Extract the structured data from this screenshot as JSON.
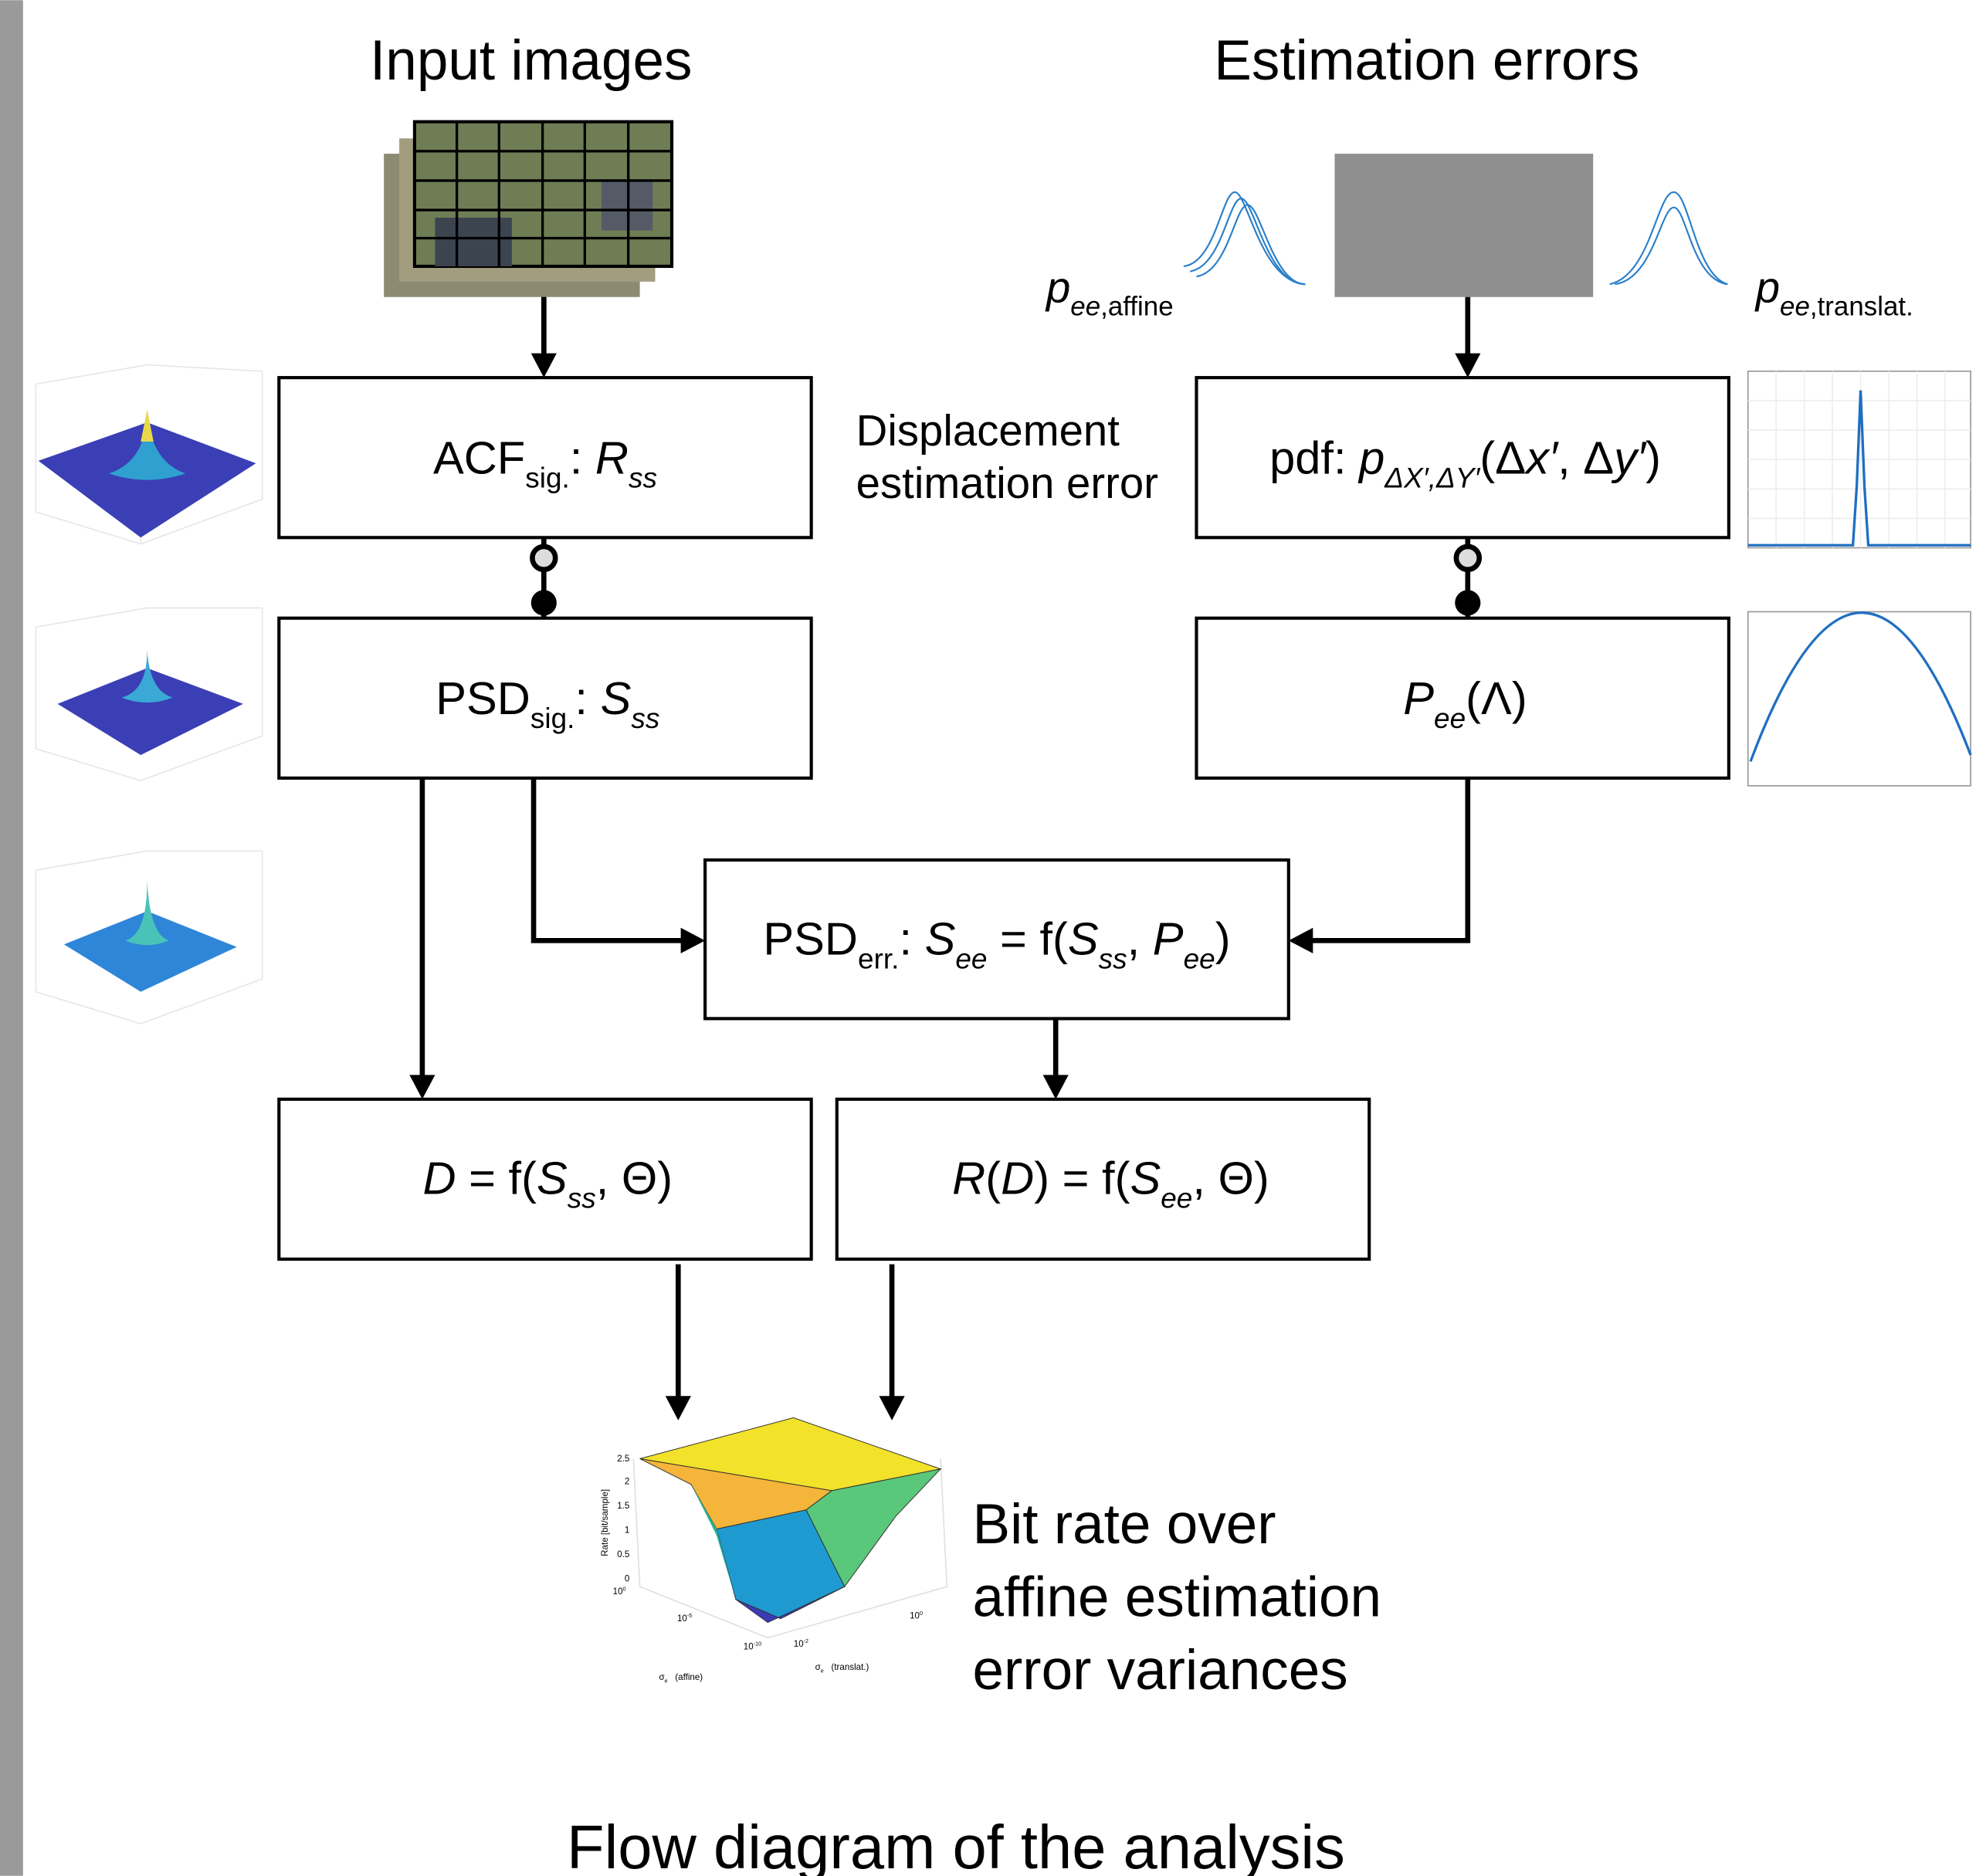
{
  "headers": {
    "left": "Input images",
    "right": "Estimation errors"
  },
  "side_labels": {
    "pee_affine": [
      {
        "text": "p",
        "italic": true
      },
      {
        "text": "ee",
        "italic": true,
        "sub": true
      },
      {
        "text": ",affine",
        "sub": true
      }
    ],
    "pee_translat": [
      {
        "text": "p",
        "italic": true
      },
      {
        "text": "ee",
        "italic": true,
        "sub": true
      },
      {
        "text": ",translat.",
        "sub": true
      }
    ],
    "displacement": [
      "Displacement",
      "estimation error"
    ]
  },
  "nodes": {
    "acf": [
      {
        "text": "ACF"
      },
      {
        "text": "sig.",
        "sub": true
      },
      {
        "text": ": "
      },
      {
        "text": "R",
        "italic": true
      },
      {
        "text": "ss",
        "italic": true,
        "sub": true
      }
    ],
    "pdf": [
      {
        "text": "pdf: "
      },
      {
        "text": "p",
        "italic": true
      },
      {
        "text": "ΔX′,ΔY′",
        "italic": true,
        "sub": true
      },
      {
        "text": "(Δ"
      },
      {
        "text": "x′",
        "italic": true
      },
      {
        "text": ", Δ"
      },
      {
        "text": "y′",
        "italic": true
      },
      {
        "text": ")"
      }
    ],
    "psd_sig": [
      {
        "text": "PSD"
      },
      {
        "text": "sig.",
        "sub": true
      },
      {
        "text": ": "
      },
      {
        "text": "S",
        "italic": true
      },
      {
        "text": "ss",
        "italic": true,
        "sub": true
      }
    ],
    "pee": [
      {
        "text": "P",
        "italic": true
      },
      {
        "text": "ee",
        "italic": true,
        "sub": true
      },
      {
        "text": "(Λ)"
      }
    ],
    "psd_err": [
      {
        "text": "PSD"
      },
      {
        "text": "err.",
        "sub": true
      },
      {
        "text": ": "
      },
      {
        "text": "S",
        "italic": true
      },
      {
        "text": "ee",
        "italic": true,
        "sub": true
      },
      {
        "text": " = f("
      },
      {
        "text": "S",
        "italic": true
      },
      {
        "text": "ss",
        "italic": true,
        "sub": true
      },
      {
        "text": ", "
      },
      {
        "text": "P",
        "italic": true
      },
      {
        "text": "ee",
        "italic": true,
        "sub": true
      },
      {
        "text": ")"
      }
    ],
    "distortion": [
      {
        "text": "D",
        "italic": true
      },
      {
        "text": " = f("
      },
      {
        "text": "S",
        "italic": true
      },
      {
        "text": "ss",
        "italic": true,
        "sub": true
      },
      {
        "text": ", Θ)"
      }
    ],
    "rate": [
      {
        "text": "R",
        "italic": true
      },
      {
        "text": "("
      },
      {
        "text": "D",
        "italic": true
      },
      {
        "text": ") = f("
      },
      {
        "text": "S",
        "italic": true
      },
      {
        "text": "ee",
        "italic": true,
        "sub": true
      },
      {
        "text": ", Θ)"
      }
    ]
  },
  "result_plot": {
    "z_ticks": [
      "2.5",
      "2",
      "1.5",
      "1",
      "0.5",
      "0"
    ],
    "z_label": "Rate [bit/sample]",
    "affine_ticks": [
      [
        {
          "text": "10"
        },
        {
          "text": "0",
          "sup": true
        }
      ],
      [
        {
          "text": "10"
        },
        {
          "text": "-5",
          "sup": true
        }
      ],
      [
        {
          "text": "10"
        },
        {
          "text": "-10",
          "sup": true
        }
      ]
    ],
    "translat_ticks": [
      [
        {
          "text": "10"
        },
        {
          "text": "-2",
          "sup": true
        }
      ],
      [
        {
          "text": "10"
        },
        {
          "text": "0",
          "sup": true
        }
      ]
    ],
    "affine_label": [
      {
        "text": "σ"
      },
      {
        "text": "e",
        "sub": true
      },
      {
        "text": "   (affine)"
      }
    ],
    "translat_label": [
      {
        "text": "σ"
      },
      {
        "text": "e",
        "sub": true
      },
      {
        "text": "   (translat.)"
      }
    ],
    "caption": [
      "Bit rate over",
      "affine estimation",
      "error variances"
    ]
  },
  "caption": "Flow diagram of the analysis"
}
